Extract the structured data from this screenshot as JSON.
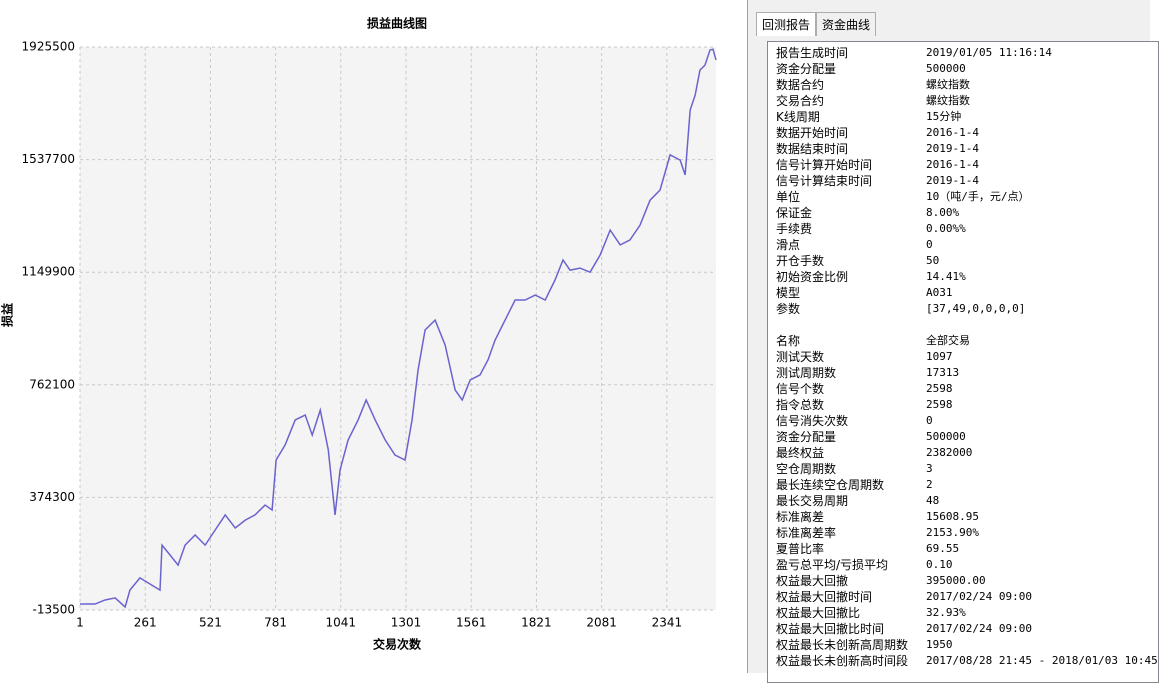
{
  "chart_data": {
    "type": "line",
    "title": "损益曲线图",
    "x_label": "交易次数",
    "y_label": "损益",
    "color": "#6a63cf",
    "grid": true,
    "xlim": [
      1,
      2537
    ],
    "xticks": [
      1,
      261,
      521,
      781,
      1041,
      1301,
      1561,
      1821,
      2081,
      2341
    ],
    "ylim": [
      -13500,
      1925500
    ],
    "yticks": [
      -13500,
      374300,
      762100,
      1149900,
      1537700,
      1925500
    ],
    "x": [
      1,
      61,
      101,
      141,
      181,
      200,
      240,
      280,
      320,
      328,
      360,
      392,
      420,
      460,
      500,
      540,
      580,
      620,
      660,
      699,
      739,
      767,
      783,
      819,
      859,
      899,
      927,
      959,
      991,
      1018,
      1038,
      1070,
      1110,
      1142,
      1178,
      1218,
      1257,
      1297,
      1325,
      1349,
      1377,
      1417,
      1457,
      1497,
      1525,
      1557,
      1596,
      1628,
      1656,
      1696,
      1736,
      1776,
      1816,
      1856,
      1895,
      1927,
      1955,
      1995,
      2035,
      2075,
      2115,
      2155,
      2194,
      2234,
      2274,
      2314,
      2354,
      2394,
      2414,
      2434,
      2454,
      2473,
      2493,
      2513,
      2525,
      2537
    ],
    "values": [
      7000,
      7000,
      21000,
      28000,
      -3000,
      55000,
      97000,
      76000,
      55000,
      210000,
      176000,
      141000,
      210000,
      245000,
      210000,
      262000,
      314000,
      269000,
      296000,
      314000,
      348000,
      331000,
      503000,
      555000,
      641000,
      658000,
      589000,
      675000,
      538000,
      314000,
      469000,
      572000,
      641000,
      710000,
      641000,
      572000,
      520000,
      503000,
      641000,
      813000,
      951000,
      985000,
      899000,
      744000,
      710000,
      779000,
      796000,
      848000,
      916000,
      985000,
      1054000,
      1054000,
      1071000,
      1054000,
      1123000,
      1192000,
      1157000,
      1164000,
      1150000,
      1209000,
      1295000,
      1244000,
      1261000,
      1312000,
      1398000,
      1433000,
      1554000,
      1536000,
      1485000,
      1709000,
      1760000,
      1846000,
      1863000,
      1915000,
      1918000,
      1881000
    ]
  },
  "tabs": [
    "回测报告",
    "资金曲线"
  ],
  "report": {
    "rows": [
      [
        "报告生成时间",
        "2019/01/05 11:16:14"
      ],
      [
        "资金分配量",
        "500000"
      ],
      [
        "数据合约",
        "螺纹指数"
      ],
      [
        "交易合约",
        "螺纹指数"
      ],
      [
        "K线周期",
        "15分钟"
      ],
      [
        "数据开始时间",
        "2016-1-4"
      ],
      [
        "数据结束时间",
        "2019-1-4"
      ],
      [
        "信号计算开始时间",
        "2016-1-4"
      ],
      [
        "信号计算结束时间",
        "2019-1-4"
      ],
      [
        "单位",
        "10（吨/手，元/点）"
      ],
      [
        "保证金",
        "8.00%"
      ],
      [
        "手续费",
        "0.00%%"
      ],
      [
        "滑点",
        "0"
      ],
      [
        "开仓手数",
        "50"
      ],
      [
        "初始资金比例",
        "14.41%"
      ],
      [
        "模型",
        "A031"
      ],
      [
        "参数",
        "[37,49,0,0,0,0]"
      ]
    ],
    "rows2": [
      [
        "名称",
        "全部交易"
      ],
      [
        "测试天数",
        "1097"
      ],
      [
        "测试周期数",
        "17313"
      ],
      [
        "信号个数",
        "2598"
      ],
      [
        "指令总数",
        "2598"
      ],
      [
        "信号消失次数",
        "0"
      ],
      [
        "资金分配量",
        "500000"
      ],
      [
        "最终权益",
        "2382000"
      ],
      [
        "空仓周期数",
        "3"
      ],
      [
        "最长连续空仓周期数",
        "2"
      ],
      [
        "最长交易周期",
        "48"
      ],
      [
        "标准离差",
        "15608.95"
      ],
      [
        "标准离差率",
        "2153.90%"
      ],
      [
        "夏普比率",
        "69.55"
      ],
      [
        "盈亏总平均/亏损平均",
        "0.10"
      ],
      [
        "权益最大回撤",
        "395000.00"
      ],
      [
        "权益最大回撤时间",
        "2017/02/24 09:00"
      ],
      [
        "权益最大回撤比",
        "32.93%"
      ],
      [
        "权益最大回撤比时间",
        "2017/02/24 09:00"
      ],
      [
        "权益最长未创新高周期数",
        "1950"
      ],
      [
        "权益最长未创新高时间段",
        "2017/08/28 21:45 - 2018/01/03 10:45"
      ]
    ]
  }
}
